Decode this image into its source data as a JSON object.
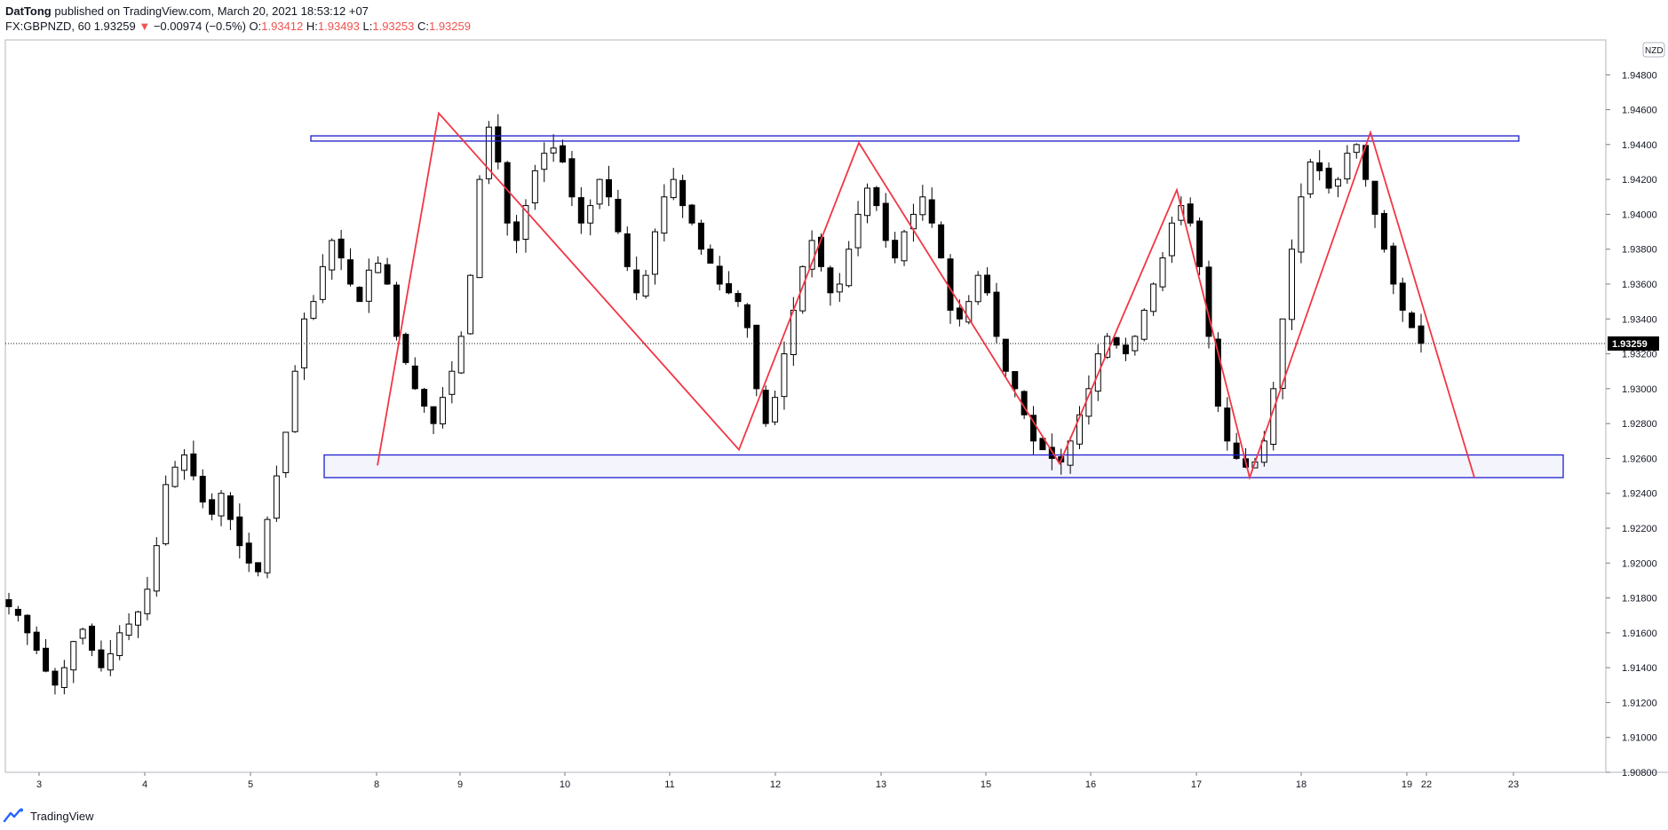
{
  "header": {
    "author": "DatTong",
    "published_text": "published on TradingView.com, March 20, 2021 18:53:12 +07",
    "symbol": "FX:GBPNZD, 60",
    "last": "1.93259",
    "change_arrow": "▼",
    "change": "−0.00974 (−0.5%)",
    "o_label": "O:",
    "o_value": "1.93412",
    "h_label": "H:",
    "h_value": "1.93493",
    "l_label": "L:",
    "l_value": "1.93253",
    "c_label": "C:",
    "c_value": "1.93259"
  },
  "footer": {
    "brand": "TradingView"
  },
  "colors": {
    "zigzag": "#f23645",
    "zone": "#1e1ecc",
    "candle": "#000000",
    "price_label_bg": "#000000",
    "axis_text": "#131722",
    "down": "#ef5350"
  },
  "chart_data": {
    "type": "candlestick",
    "symbol": "FX:GBPNZD",
    "interval": "60",
    "currency": "NZD",
    "last_price": 1.93259,
    "last_price_label": "1.93259",
    "ylim": [
      1.908,
      1.95
    ],
    "y_ticks": [
      "1.94800",
      "1.94600",
      "1.94400",
      "1.94200",
      "1.94000",
      "1.93800",
      "1.93600",
      "1.93400",
      "1.93200",
      "1.93000",
      "1.92800",
      "1.92600",
      "1.92400",
      "1.92200",
      "1.92000",
      "1.91800",
      "1.91600",
      "1.91400",
      "1.91200",
      "1.91000",
      "1.90800"
    ],
    "x_ticks": [
      "3",
      "4",
      "5",
      "8",
      "9",
      "10",
      "11",
      "12",
      "13",
      "15",
      "16",
      "17",
      "18",
      "19",
      "22",
      "23"
    ],
    "zigzag": [
      {
        "date": "Mar 8",
        "price": 1.9256
      },
      {
        "date": "Mar 8",
        "price": 1.9458
      },
      {
        "date": "Mar 11",
        "price": 1.9265
      },
      {
        "date": "Mar 12",
        "price": 1.9441
      },
      {
        "date": "Mar 16",
        "price": 1.9257
      },
      {
        "date": "Mar 17",
        "price": 1.9414
      },
      {
        "date": "Mar 18",
        "price": 1.9249
      },
      {
        "date": "Mar 19",
        "price": 1.9447
      },
      {
        "date": "Mar 22",
        "price": 1.9249
      }
    ],
    "resistance_zone": {
      "low": 1.9442,
      "high": 1.9445
    },
    "support_zone": {
      "low": 1.9249,
      "high": 1.9262
    },
    "candles_approx": [
      1.9175,
      1.917,
      1.916,
      1.915,
      1.9138,
      1.913,
      1.914,
      1.9155,
      1.9162,
      1.915,
      1.914,
      1.9148,
      1.916,
      1.9165,
      1.9172,
      1.9185,
      1.921,
      1.9245,
      1.9255,
      1.9262,
      1.925,
      1.9235,
      1.9228,
      1.924,
      1.9225,
      1.921,
      1.92,
      1.9195,
      1.9225,
      1.925,
      1.9275,
      1.931,
      1.934,
      1.935,
      1.937,
      1.9385,
      1.9375,
      1.936,
      1.935,
      1.9368,
      1.9372,
      1.936,
      1.933,
      1.9315,
      1.93,
      1.929,
      1.928,
      1.9295,
      1.931,
      1.933,
      1.9365,
      1.942,
      1.945,
      1.943,
      1.9395,
      1.9385,
      1.9405,
      1.9425,
      1.9435,
      1.9438,
      1.943,
      1.941,
      1.9395,
      1.9405,
      1.942,
      1.941,
      1.939,
      1.937,
      1.9355,
      1.9365,
      1.939,
      1.941,
      1.942,
      1.9405,
      1.9395,
      1.938,
      1.9372,
      1.936,
      1.9355,
      1.935,
      1.9335,
      1.93,
      1.928,
      1.9295,
      1.932,
      1.9345,
      1.937,
      1.9385,
      1.937,
      1.9355,
      1.936,
      1.938,
      1.94,
      1.9415,
      1.9405,
      1.9385,
      1.9375,
      1.939,
      1.94,
      1.941,
      1.9395,
      1.9375,
      1.9345,
      1.934,
      1.935,
      1.9365,
      1.9355,
      1.933,
      1.931,
      1.93,
      1.9285,
      1.927,
      1.9265,
      1.926,
      1.9258,
      1.927,
      1.9285,
      1.93,
      1.932,
      1.933,
      1.9325,
      1.932,
      1.933,
      1.9345,
      1.936,
      1.9375,
      1.9395,
      1.9405,
      1.9395,
      1.937,
      1.933,
      1.929,
      1.927,
      1.926,
      1.9255,
      1.9258,
      1.927,
      1.93,
      1.934,
      1.938,
      1.941,
      1.943,
      1.9425,
      1.9415,
      1.942,
      1.9435,
      1.944,
      1.942,
      1.94,
      1.938,
      1.936,
      1.9345,
      1.9335,
      1.9326
    ]
  }
}
